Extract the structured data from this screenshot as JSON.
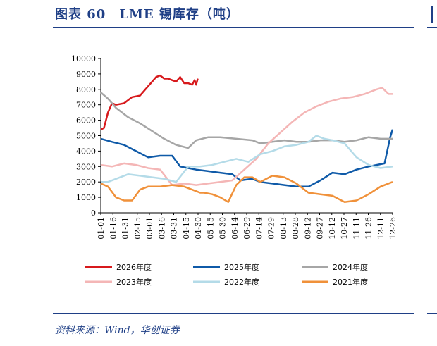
{
  "page": {
    "title": "图表 60　LME 锡库存（吨）",
    "source": "资料来源：Wind，华创证券"
  },
  "chart_data": {
    "type": "line",
    "title": "",
    "xlabel": "",
    "ylabel": "",
    "ylim": [
      0,
      10000
    ],
    "yticks": [
      0,
      1000,
      2000,
      3000,
      4000,
      5000,
      6000,
      7000,
      8000,
      9000,
      10000
    ],
    "xticks": [
      "01-01",
      "01-16",
      "01-31",
      "02-15",
      "03-01",
      "03-16",
      "03-31",
      "04-15",
      "04-30",
      "05-15",
      "05-30",
      "06-14",
      "06-29",
      "07-14",
      "07-29",
      "08-13",
      "08-28",
      "09-12",
      "09-27",
      "10-12",
      "10-27",
      "11-11",
      "11-26",
      "12-11",
      "12-26"
    ],
    "grid": false,
    "legend": "bottom",
    "series": [
      {
        "name": "2026年度",
        "color": "#d7191c",
        "x": [
          1,
          5,
          10,
          15,
          20,
          30,
          40,
          50,
          60,
          70,
          75,
          80,
          85,
          90,
          95,
          100,
          105,
          110,
          115,
          118,
          120,
          122
        ],
        "values": [
          5400,
          5500,
          6500,
          7100,
          7000,
          7100,
          7500,
          7600,
          8200,
          8800,
          8900,
          8700,
          8700,
          8600,
          8500,
          8800,
          8400,
          8400,
          8300,
          8600,
          8300,
          8700
        ]
      },
      {
        "name": "2025年度",
        "color": "#0f5aa8",
        "x": [
          1,
          15,
          30,
          45,
          60,
          75,
          90,
          100,
          110,
          120,
          135,
          150,
          165,
          175,
          190,
          200,
          215,
          230,
          245,
          260,
          275,
          290,
          305,
          320,
          335,
          345,
          355,
          362,
          365
        ],
        "values": [
          4800,
          4600,
          4400,
          4000,
          3600,
          3700,
          3700,
          3000,
          2900,
          2800,
          2700,
          2600,
          2500,
          2100,
          2200,
          2000,
          1900,
          1800,
          1700,
          1700,
          2100,
          2600,
          2500,
          2800,
          3000,
          3100,
          3200,
          4900,
          5400
        ]
      },
      {
        "name": "2024年度",
        "color": "#a6a6a6",
        "x": [
          1,
          10,
          20,
          35,
          50,
          65,
          80,
          95,
          110,
          120,
          135,
          150,
          170,
          190,
          200,
          215,
          230,
          245,
          260,
          275,
          290,
          305,
          320,
          335,
          350,
          365
        ],
        "values": [
          7800,
          7400,
          6800,
          6200,
          5800,
          5300,
          4800,
          4400,
          4200,
          4700,
          4900,
          4900,
          4800,
          4700,
          4500,
          4600,
          4700,
          4600,
          4600,
          4700,
          4700,
          4600,
          4700,
          4900,
          4800,
          4800
        ]
      },
      {
        "name": "2023年度",
        "color": "#f4b6b6",
        "x": [
          1,
          15,
          30,
          45,
          60,
          75,
          90,
          105,
          120,
          135,
          150,
          165,
          180,
          195,
          210,
          225,
          240,
          255,
          270,
          285,
          300,
          315,
          330,
          345,
          352,
          360,
          365
        ],
        "values": [
          3100,
          3000,
          3200,
          3100,
          2900,
          2800,
          1800,
          1900,
          1800,
          1900,
          2000,
          2100,
          2800,
          3500,
          4500,
          5200,
          5900,
          6500,
          6900,
          7200,
          7400,
          7500,
          7700,
          8000,
          8100,
          7700,
          7700
        ]
      },
      {
        "name": "2022年度",
        "color": "#b4dbe8",
        "x": [
          1,
          10,
          20,
          35,
          50,
          65,
          80,
          95,
          110,
          125,
          140,
          155,
          170,
          185,
          200,
          215,
          230,
          245,
          260,
          270,
          280,
          290,
          305,
          320,
          335,
          350,
          365
        ],
        "values": [
          2000,
          2000,
          2200,
          2500,
          2400,
          2300,
          2200,
          2000,
          3000,
          3000,
          3100,
          3300,
          3500,
          3300,
          3800,
          4000,
          4300,
          4400,
          4600,
          5000,
          4800,
          4700,
          4500,
          3600,
          3100,
          2900,
          3000
        ]
      },
      {
        "name": "2021年度",
        "color": "#f0913a",
        "x": [
          1,
          10,
          20,
          30,
          40,
          50,
          60,
          75,
          90,
          105,
          120,
          125,
          130,
          140,
          150,
          160,
          170,
          180,
          190,
          200,
          215,
          230,
          245,
          260,
          275,
          290,
          305,
          320,
          335,
          350,
          365
        ],
        "values": [
          1900,
          1700,
          1000,
          800,
          800,
          1500,
          1700,
          1700,
          1800,
          1700,
          1400,
          1300,
          1300,
          1200,
          1000,
          700,
          1800,
          2300,
          2300,
          2000,
          2400,
          2300,
          1900,
          1300,
          1200,
          1100,
          700,
          800,
          1200,
          1700,
          2000
        ]
      }
    ]
  }
}
